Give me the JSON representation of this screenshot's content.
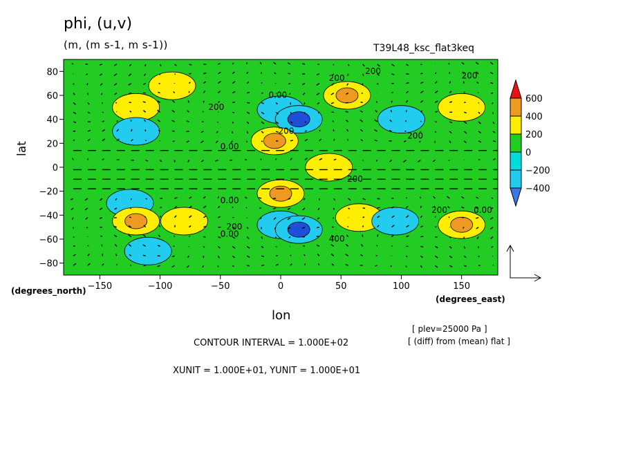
{
  "header": {
    "title": "phi, (u,v)",
    "units": "(m, (m s-1, m s-1))",
    "experiment": "T39L48_ksc_flat3keq"
  },
  "axes": {
    "y_label": "lat",
    "x_label": "lon",
    "y_unit_label": "(degrees_north)",
    "x_unit_label": "(degrees_east)"
  },
  "notes": {
    "plev": "[ plev=25000 Pa ]",
    "diff": "[ (diff) from (mean) flat ]",
    "contour_interval": "CONTOUR INTERVAL = 1.000E+02",
    "vector_units": "XUNIT = 1.000E+01, YUNIT = 1.000E+01"
  },
  "colors": {
    "lt_neg400": "#3a78e8",
    "neg400_neg200": "#22ccee",
    "neg200_0": "#00dddd",
    "0_200": "#22cc22",
    "200_400": "#ffee00",
    "400_600": "#ee9922",
    "gt_600": "#ee1111",
    "deep_neg": "#1f4fd8",
    "contour": "#000000"
  },
  "chart_data": {
    "type": "heatmap",
    "variable": "phi",
    "overlay": "wind vectors (u,v)",
    "x": {
      "min": -180,
      "max": 180,
      "ticks": [
        -150,
        -100,
        -50,
        0,
        50,
        100,
        150
      ]
    },
    "y": {
      "min": -90,
      "max": 90,
      "ticks": [
        -80,
        -60,
        -40,
        -20,
        0,
        20,
        40,
        60,
        80
      ]
    },
    "colorbar": {
      "levels": [
        -400,
        -200,
        0,
        200,
        400,
        600
      ],
      "tick_labels": [
        "600",
        "400",
        "200",
        "0",
        "−200",
        "−400"
      ],
      "extend": "both"
    },
    "contour_labels": [
      "200",
      "0.00",
      "200",
      "200",
      "0.00",
      "200",
      "0.00",
      "200",
      "0.00",
      "400",
      "200",
      "200",
      "200",
      "0.00",
      "200"
    ],
    "anomalies": [
      {
        "lon": -120,
        "lat": 50,
        "value": 300
      },
      {
        "lon": -90,
        "lat": 68,
        "value": 200
      },
      {
        "lon": -120,
        "lat": 30,
        "value": -200
      },
      {
        "lon": -125,
        "lat": -30,
        "value": -200
      },
      {
        "lon": -120,
        "lat": -45,
        "value": 420
      },
      {
        "lon": -80,
        "lat": -45,
        "value": 300
      },
      {
        "lon": -110,
        "lat": -70,
        "value": -150
      },
      {
        "lon": 0,
        "lat": 48,
        "value": -350
      },
      {
        "lon": 15,
        "lat": 40,
        "value": -450
      },
      {
        "lon": -5,
        "lat": 22,
        "value": 450
      },
      {
        "lon": 0,
        "lat": -22,
        "value": 450
      },
      {
        "lon": 0,
        "lat": -48,
        "value": -350
      },
      {
        "lon": 15,
        "lat": -52,
        "value": -450
      },
      {
        "lon": 55,
        "lat": 60,
        "value": 420
      },
      {
        "lon": 65,
        "lat": -42,
        "value": 300
      },
      {
        "lon": 100,
        "lat": 40,
        "value": -300
      },
      {
        "lon": 95,
        "lat": -45,
        "value": -200
      },
      {
        "lon": 150,
        "lat": 50,
        "value": 300
      },
      {
        "lon": 150,
        "lat": -48,
        "value": 420
      },
      {
        "lon": 40,
        "lat": 0,
        "value": 200
      }
    ]
  }
}
